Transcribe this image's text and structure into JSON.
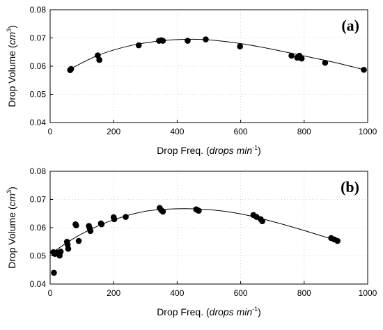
{
  "chart_data": [
    {
      "type": "scatter",
      "panel_label": "(a)",
      "xlabel_main": "Drop Freq. (",
      "xlabel_italic": "drops min",
      "xlabel_sup": "-1",
      "xlabel_close": ")",
      "ylabel_main": "Drop Volume (",
      "ylabel_italic": "cm",
      "ylabel_sup": "3",
      "ylabel_close": ")",
      "xlim": [
        0,
        1000
      ],
      "ylim": [
        0.04,
        0.08
      ],
      "xticks": [
        0,
        200,
        400,
        600,
        800,
        1000
      ],
      "yticks": [
        0.04,
        0.05,
        0.06,
        0.07,
        0.08
      ],
      "xtick_labels": [
        "0",
        "200",
        "400",
        "600",
        "800",
        "1000"
      ],
      "ytick_labels": [
        "0.04",
        "0.05",
        "0.06",
        "0.07",
        "0.08"
      ],
      "grid": true,
      "points": [
        [
          63,
          0.0586
        ],
        [
          66,
          0.059
        ],
        [
          150,
          0.0638
        ],
        [
          155,
          0.0622
        ],
        [
          279,
          0.0674
        ],
        [
          343,
          0.069
        ],
        [
          350,
          0.0692
        ],
        [
          355,
          0.069
        ],
        [
          433,
          0.069
        ],
        [
          490,
          0.0695
        ],
        [
          598,
          0.067
        ],
        [
          760,
          0.0637
        ],
        [
          778,
          0.063
        ],
        [
          785,
          0.0637
        ],
        [
          792,
          0.0627
        ],
        [
          866,
          0.0612
        ],
        [
          988,
          0.0587
        ]
      ],
      "fit": {
        "x": [
          60,
          150,
          250,
          350,
          430,
          500,
          600,
          700,
          800,
          900,
          990
        ],
        "y": [
          0.0588,
          0.0638,
          0.0672,
          0.069,
          0.0695,
          0.0693,
          0.068,
          0.066,
          0.0636,
          0.0612,
          0.0587
        ]
      }
    },
    {
      "type": "scatter",
      "panel_label": "(b)",
      "xlabel_main": "Drop Freq. (",
      "xlabel_italic": "drops min",
      "xlabel_sup": "-1",
      "xlabel_close": ")",
      "ylabel_main": "Drop Volume (",
      "ylabel_italic": "cm",
      "ylabel_sup": "3",
      "ylabel_close": ")",
      "xlim": [
        0,
        1000
      ],
      "ylim": [
        0.04,
        0.08
      ],
      "xticks": [
        0,
        200,
        400,
        600,
        800,
        1000
      ],
      "yticks": [
        0.04,
        0.05,
        0.06,
        0.07,
        0.08
      ],
      "xtick_labels": [
        "0",
        "200",
        "400",
        "600",
        "800",
        "1000"
      ],
      "ytick_labels": [
        "0.04",
        "0.05",
        "0.06",
        "0.07",
        "0.08"
      ],
      "grid": true,
      "points": [
        [
          10,
          0.0513
        ],
        [
          12,
          0.044
        ],
        [
          15,
          0.0507
        ],
        [
          20,
          0.0512
        ],
        [
          27,
          0.051
        ],
        [
          30,
          0.0501
        ],
        [
          33,
          0.0515
        ],
        [
          53,
          0.055
        ],
        [
          55,
          0.054
        ],
        [
          57,
          0.0525
        ],
        [
          80,
          0.0612
        ],
        [
          82,
          0.0608
        ],
        [
          90,
          0.0553
        ],
        [
          122,
          0.0606
        ],
        [
          125,
          0.0597
        ],
        [
          127,
          0.0588
        ],
        [
          160,
          0.0615
        ],
        [
          162,
          0.0612
        ],
        [
          200,
          0.0637
        ],
        [
          202,
          0.063
        ],
        [
          238,
          0.0638
        ],
        [
          345,
          0.067
        ],
        [
          350,
          0.0662
        ],
        [
          355,
          0.0657
        ],
        [
          460,
          0.0665
        ],
        [
          463,
          0.0663
        ],
        [
          468,
          0.066
        ],
        [
          640,
          0.0645
        ],
        [
          650,
          0.0638
        ],
        [
          663,
          0.063
        ],
        [
          668,
          0.0623
        ],
        [
          885,
          0.0563
        ],
        [
          895,
          0.0558
        ],
        [
          905,
          0.0553
        ]
      ],
      "fit": {
        "x": [
          10,
          60,
          120,
          200,
          300,
          400,
          500,
          600,
          700,
          800,
          900
        ],
        "y": [
          0.0514,
          0.0552,
          0.059,
          0.0628,
          0.0658,
          0.0667,
          0.0664,
          0.0649,
          0.0622,
          0.059,
          0.0555
        ]
      }
    }
  ]
}
